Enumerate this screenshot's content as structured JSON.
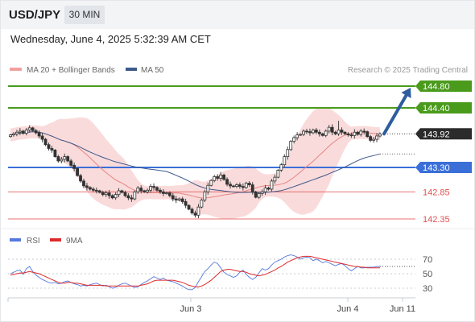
{
  "header": {
    "symbol": "USD/JPY",
    "timeframe": "30 MIN",
    "datetime": "Wednesday, June 4, 2025 5:32:39 AM CET"
  },
  "legend": {
    "ma20_label": "MA 20 + Bollinger Bands",
    "ma50_label": "MA 50",
    "credit": "Research © 2025 Trading Central"
  },
  "rsi_legend": {
    "rsi_label": "RSI",
    "ma_label": "9MA"
  },
  "colors": {
    "green": "#4a9a1c",
    "blue": "#3a6fd8",
    "red": "#e25050",
    "bb_fill": "#f9d5d5",
    "ma50": "#3d5a8c",
    "rsi": "#5577e0",
    "rsi_ma": "#dd2a2a",
    "arrow": "#2e5c9e"
  },
  "chart_data": [
    {
      "type": "candlestick",
      "title": "USD/JPY 30 MIN",
      "ylim": [
        142.2,
        145.0
      ],
      "x_ticks": [
        "Jun 3",
        "Jun 4",
        "Jun 11"
      ],
      "levels": [
        {
          "value": 144.8,
          "label": "144.80",
          "kind": "resistance"
        },
        {
          "value": 144.4,
          "label": "144.40",
          "kind": "resistance"
        },
        {
          "value": 143.92,
          "label": "143.92",
          "kind": "last"
        },
        {
          "value": 143.3,
          "label": "143.30",
          "kind": "pivot"
        },
        {
          "value": 142.85,
          "label": "142.85",
          "kind": "support"
        },
        {
          "value": 142.35,
          "label": "142.35",
          "kind": "support"
        }
      ],
      "projection": {
        "from": 143.92,
        "to": 144.8
      },
      "closes": [
        143.9,
        143.92,
        143.95,
        143.97,
        143.93,
        143.99,
        144.03,
        143.98,
        143.94,
        143.88,
        143.82,
        143.72,
        143.65,
        143.62,
        143.5,
        143.42,
        143.45,
        143.5,
        143.42,
        143.34,
        143.28,
        143.15,
        143.05,
        142.96,
        142.93,
        142.9,
        142.88,
        142.87,
        142.84,
        142.8,
        142.83,
        142.78,
        142.74,
        142.8,
        142.87,
        142.84,
        142.78,
        142.74,
        142.72,
        142.85,
        142.92,
        142.87,
        142.85,
        142.88,
        142.95,
        142.93,
        142.88,
        142.85,
        142.82,
        142.83,
        142.78,
        142.72,
        142.7,
        142.72,
        142.67,
        142.6,
        142.53,
        142.46,
        142.42,
        142.57,
        142.7,
        142.85,
        142.97,
        143.06,
        143.13,
        143.1,
        143.16,
        143.08,
        142.99,
        142.96,
        142.95,
        142.98,
        142.95,
        142.93,
        143.01,
        142.98,
        142.85,
        142.75,
        142.82,
        142.85,
        142.92,
        142.9,
        143.05,
        143.12,
        143.25,
        143.35,
        143.5,
        143.63,
        143.78,
        143.85,
        143.9,
        143.91,
        143.97,
        143.96,
        143.94,
        143.99,
        143.95,
        143.92,
        143.89,
        143.97,
        144.04,
        143.95,
        143.92,
        143.99,
        143.95,
        143.92,
        143.9,
        143.89,
        143.95,
        143.91,
        143.97,
        143.96,
        143.87,
        143.8,
        143.82,
        143.88,
        143.92
      ]
    },
    {
      "type": "line",
      "title": "RSI",
      "ylim": [
        20,
        80
      ],
      "y_ticks": [
        70,
        50,
        30
      ],
      "series": [
        {
          "name": "RSI",
          "values": [
            50,
            52,
            54,
            55,
            49,
            57,
            60,
            53,
            48,
            45,
            42,
            40,
            38,
            37,
            38,
            36,
            37,
            39,
            40,
            38,
            36,
            35,
            33,
            34,
            33,
            35,
            36,
            37,
            35,
            33,
            34,
            32,
            30,
            31,
            34,
            36,
            37,
            35,
            33,
            31,
            32,
            35,
            38,
            40,
            43,
            46,
            44,
            42,
            44,
            41,
            40,
            39,
            37,
            35,
            33,
            30,
            28,
            28,
            31,
            39,
            46,
            53,
            57,
            62,
            66,
            64,
            58,
            52,
            49,
            47,
            45,
            47,
            52,
            55,
            49,
            45,
            42,
            45,
            51,
            57,
            55,
            57,
            62,
            66,
            68,
            70,
            73,
            75,
            76,
            75,
            73,
            70,
            72,
            73,
            72,
            68,
            70,
            68,
            65,
            67,
            65,
            63,
            61,
            63,
            64,
            61,
            57,
            54,
            57,
            60,
            58,
            58,
            59,
            59,
            59,
            60,
            60
          ]
        },
        {
          "name": "9MA",
          "values": [
            48,
            49,
            50,
            51,
            51,
            52,
            53,
            52,
            51,
            50,
            48,
            46,
            44,
            42,
            40,
            38,
            37,
            37,
            38,
            38,
            37,
            37,
            36,
            35,
            34,
            34,
            34,
            34,
            34,
            34,
            33,
            33,
            33,
            33,
            33,
            33,
            33,
            33,
            33,
            33,
            33,
            34,
            35,
            36,
            38,
            40,
            41,
            41,
            41,
            41,
            41,
            41,
            40,
            39,
            38,
            36,
            34,
            33,
            32,
            32,
            33,
            35,
            38,
            41,
            45,
            49,
            53,
            55,
            56,
            56,
            55,
            54,
            53,
            53,
            52,
            50,
            49,
            48,
            47,
            48,
            49,
            51,
            53,
            55,
            58,
            60,
            63,
            66,
            68,
            70,
            72,
            73,
            74,
            74,
            74,
            73,
            72,
            71,
            70,
            69,
            68,
            67,
            66,
            65,
            64,
            63,
            62,
            61,
            60,
            60,
            59,
            59,
            58,
            58,
            58,
            58,
            58
          ]
        }
      ]
    }
  ]
}
